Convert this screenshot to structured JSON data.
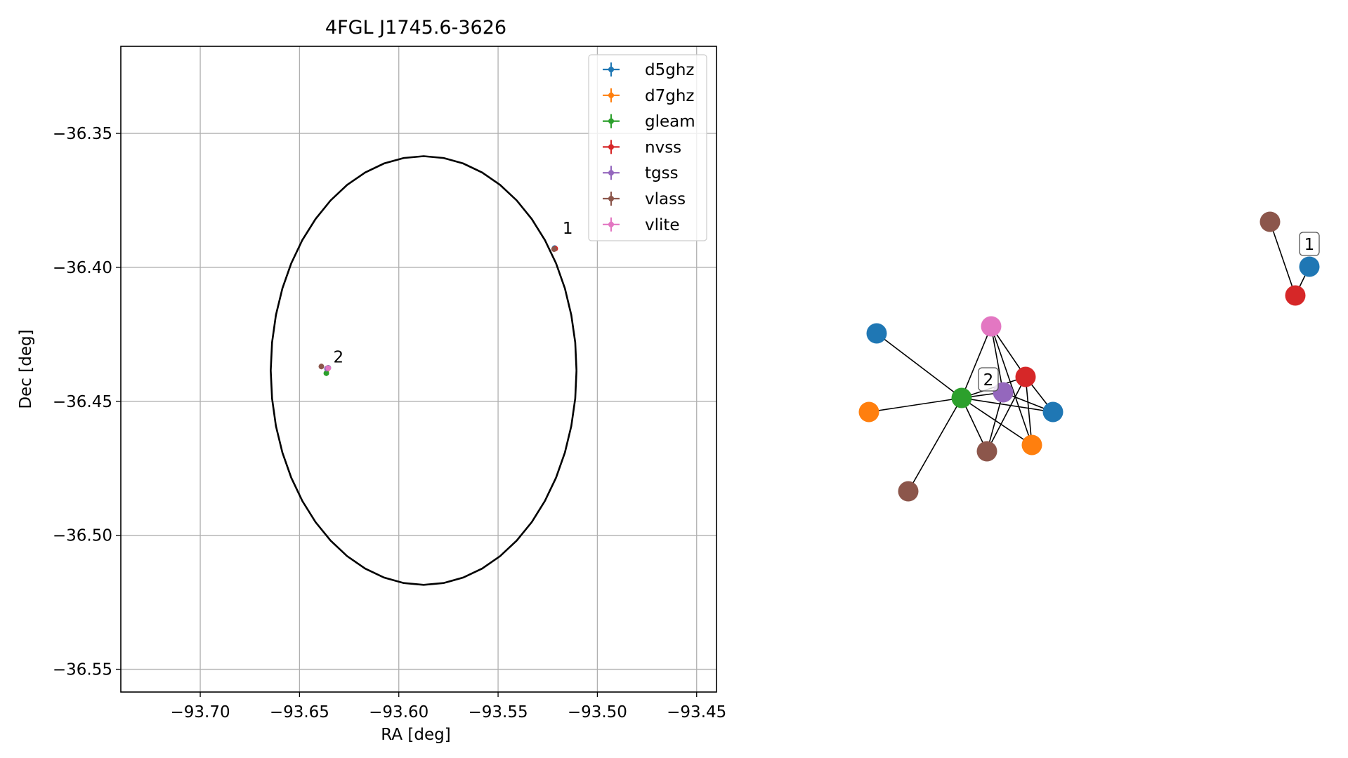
{
  "chart_data": [
    {
      "type": "scatter",
      "title": "4FGL J1745.6-3626",
      "xlabel": "RA [deg]",
      "ylabel": "Dec [deg]",
      "xlim": [
        -93.74,
        -93.44
      ],
      "ylim": [
        -36.5585,
        -36.3175
      ],
      "grid": true,
      "legend_position": "top-right",
      "x_ticks": [
        -93.7,
        -93.65,
        -93.6,
        -93.55,
        -93.5,
        -93.45
      ],
      "x_tick_labels": [
        "−93.70",
        "−93.65",
        "−93.60",
        "−93.55",
        "−93.50",
        "−93.45"
      ],
      "y_ticks": [
        -36.35,
        -36.4,
        -36.45,
        -36.5,
        -36.55
      ],
      "y_tick_labels": [
        "−36.35",
        "−36.40",
        "−36.45",
        "−36.50",
        "−36.55"
      ],
      "ellipse": {
        "center": [
          -93.5875,
          -36.4385
        ],
        "ra_semi_axis": 0.077,
        "dec_semi_axis": 0.08,
        "color": "#000000"
      },
      "series": [
        {
          "name": "d5ghz",
          "color": "#1f77b4",
          "x": [
            -93.6355,
            -93.5215
          ],
          "y": [
            -36.4375,
            -36.3928
          ]
        },
        {
          "name": "d7ghz",
          "color": "#ff7f0e",
          "x": [
            -93.636
          ],
          "y": [
            -36.438
          ]
        },
        {
          "name": "gleam",
          "color": "#2ca02c",
          "x": [
            -93.6365
          ],
          "y": [
            -36.4395
          ]
        },
        {
          "name": "nvss",
          "color": "#d62728",
          "x": [
            -93.6358,
            -93.5212
          ],
          "y": [
            -36.4376,
            -36.393
          ]
        },
        {
          "name": "tgss",
          "color": "#9467bd",
          "x": [
            -93.6362
          ],
          "y": [
            -36.4378
          ]
        },
        {
          "name": "vlass",
          "color": "#8c564b",
          "x": [
            -93.639,
            -93.5218
          ],
          "y": [
            -36.437,
            -36.3932
          ]
        },
        {
          "name": "vlite",
          "color": "#e377c2",
          "x": [
            -93.6355
          ],
          "y": [
            -36.4376
          ]
        }
      ],
      "annotations": [
        {
          "text": "1",
          "x": -93.5175,
          "y": -36.3875
        },
        {
          "text": "2",
          "x": -93.633,
          "y": -36.4355
        }
      ]
    },
    {
      "type": "network",
      "nodes": [
        {
          "id": "a1",
          "color": "#1f77b4"
        },
        {
          "id": "a2",
          "color": "#ff7f0e"
        },
        {
          "id": "a3",
          "color": "#2ca02c"
        },
        {
          "id": "a4",
          "color": "#e377c2"
        },
        {
          "id": "a5",
          "color": "#9467bd"
        },
        {
          "id": "a6",
          "color": "#d62728"
        },
        {
          "id": "a7",
          "color": "#1f77b4"
        },
        {
          "id": "a8",
          "color": "#ff7f0e"
        },
        {
          "id": "a9",
          "color": "#8c564b"
        },
        {
          "id": "a10",
          "color": "#8c564b"
        },
        {
          "id": "b1",
          "color": "#8c564b"
        },
        {
          "id": "b2",
          "color": "#1f77b4"
        },
        {
          "id": "b3",
          "color": "#d62728"
        }
      ],
      "edges": [
        [
          "a1",
          "a3"
        ],
        [
          "a2",
          "a3"
        ],
        [
          "a3",
          "a4"
        ],
        [
          "a3",
          "a5"
        ],
        [
          "a3",
          "a6"
        ],
        [
          "a3",
          "a7"
        ],
        [
          "a3",
          "a8"
        ],
        [
          "a3",
          "a9"
        ],
        [
          "a3",
          "a10"
        ],
        [
          "a4",
          "a5"
        ],
        [
          "a4",
          "a6"
        ],
        [
          "a4",
          "a8"
        ],
        [
          "a5",
          "a7"
        ],
        [
          "a5",
          "a9"
        ],
        [
          "a6",
          "a9"
        ],
        [
          "a6",
          "a8"
        ],
        [
          "a6",
          "a7"
        ],
        [
          "b1",
          "b3"
        ],
        [
          "b2",
          "b3"
        ]
      ],
      "labels": [
        {
          "text": "2"
        },
        {
          "text": "1"
        }
      ]
    }
  ]
}
